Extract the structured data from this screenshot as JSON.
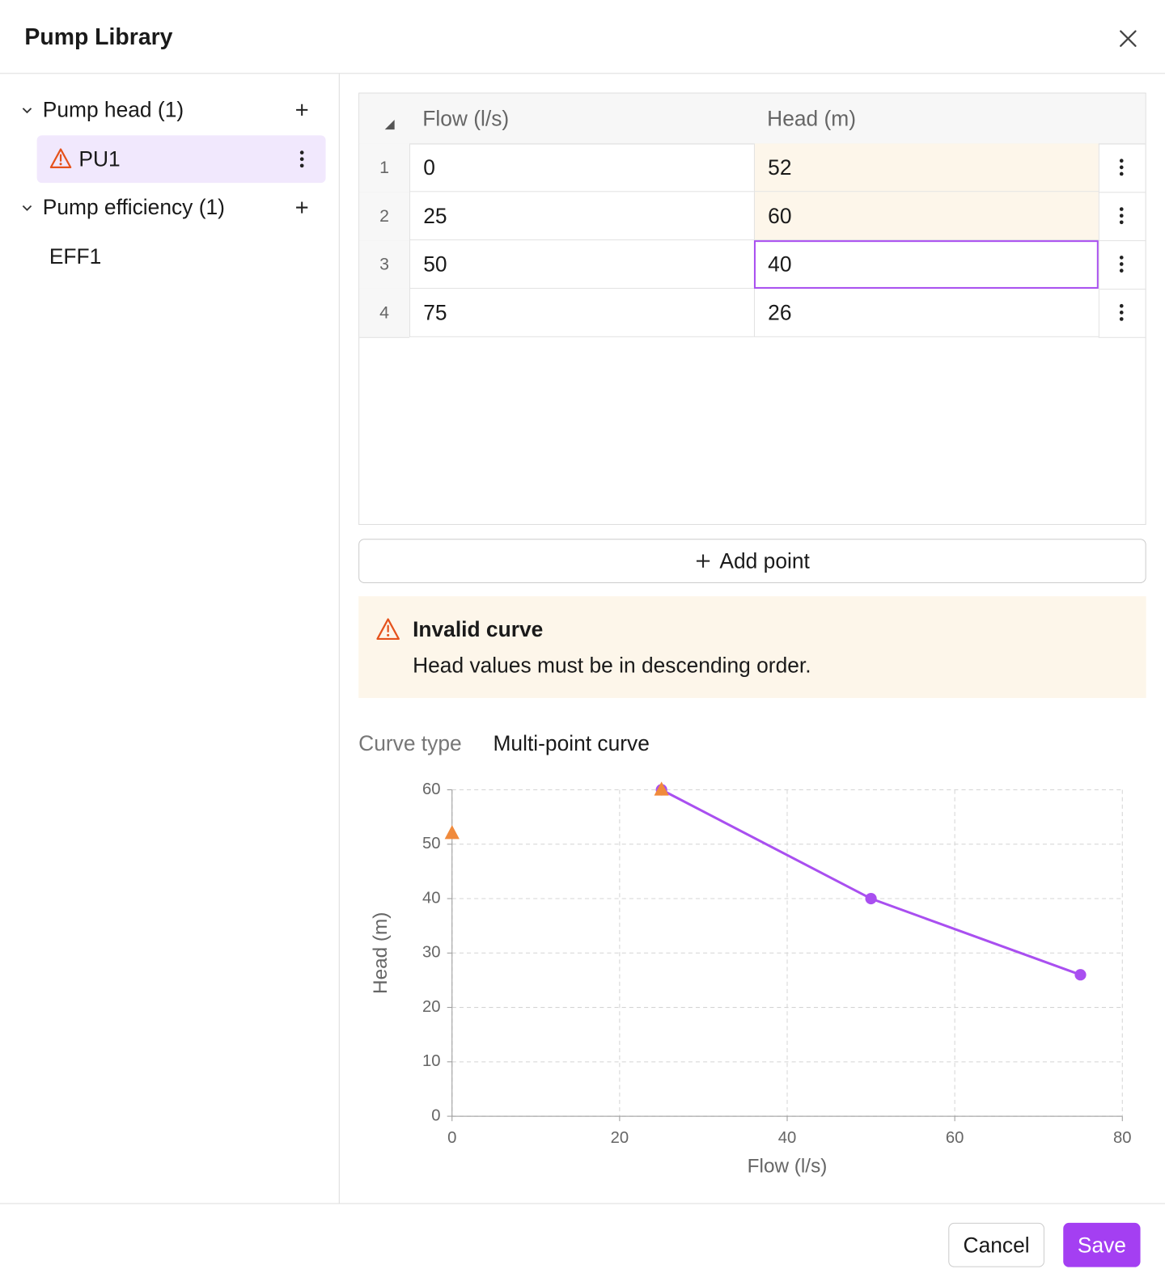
{
  "header": {
    "title": "Pump Library"
  },
  "sidebar": {
    "groups": [
      {
        "label": "Pump head (1)",
        "items": [
          "PU1"
        ]
      },
      {
        "label": "Pump efficiency (1)",
        "items": [
          "EFF1"
        ]
      }
    ]
  },
  "table": {
    "columns": [
      "Flow (l/s)",
      "Head (m)"
    ],
    "rows": [
      {
        "index": 1,
        "cells": [
          0,
          52
        ]
      },
      {
        "index": 2,
        "cells": [
          25,
          60
        ]
      },
      {
        "index": 3,
        "cells": [
          50,
          40
        ]
      },
      {
        "index": 4,
        "cells": [
          75,
          26
        ]
      }
    ]
  },
  "add_point": "Add point",
  "alert": {
    "title": "Invalid curve",
    "message": "Head values must be in descending order."
  },
  "curve_type": {
    "label": "Curve type",
    "value": "Multi-point curve"
  },
  "chart_data": {
    "type": "line",
    "x_label": "Flow (l/s)",
    "y_label": "Head (m)",
    "xlim": [
      0,
      80
    ],
    "xticks": [
      0,
      20,
      40,
      60,
      80
    ],
    "ylim": [
      0,
      60
    ],
    "yticks": [
      0,
      10,
      20,
      30,
      40,
      50,
      60
    ],
    "grid": true,
    "series": [
      {
        "color": "#a94ff0",
        "marker": "circle",
        "line": true,
        "x": [
          25,
          50,
          75
        ],
        "values": [
          60,
          40,
          26
        ]
      },
      {
        "color": "#f08a3c",
        "marker": "triangle",
        "line": false,
        "x": [
          0,
          25
        ],
        "values": [
          52,
          60
        ]
      }
    ]
  },
  "footer": {
    "cancel": "Cancel",
    "save": "Save"
  }
}
